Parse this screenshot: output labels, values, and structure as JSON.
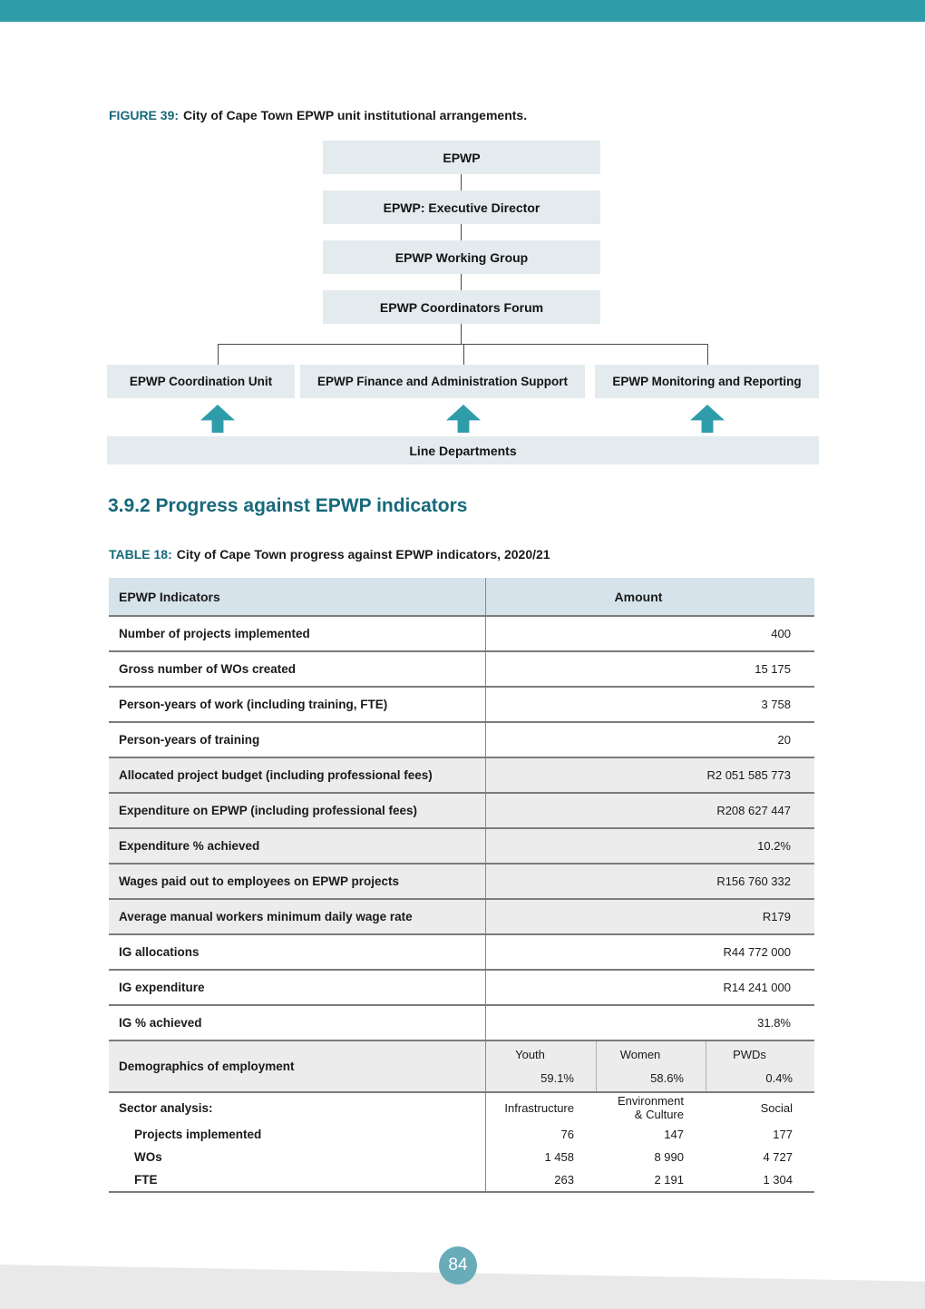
{
  "page": {
    "number": "84"
  },
  "colors": {
    "accent_teal": "#2F9DA9",
    "heading_teal": "#16697A",
    "badge_teal": "#69ACB9",
    "org_box_bg": "#E3EBEE",
    "table_header_bg": "#D7E3EA",
    "table_shade_bg": "#ECECEC"
  },
  "figure": {
    "label": "FIGURE 39:",
    "caption": "City of Cape Town EPWP unit institutional arrangements.",
    "chain": [
      "EPWP",
      "EPWP: Executive Director",
      "EPWP Working Group",
      "EPWP Coordinators Forum"
    ],
    "branches": [
      "EPWP Coordination Unit",
      "EPWP Finance and Administration Support",
      "EPWP Monitoring and Reporting"
    ],
    "base": "Line Departments"
  },
  "section": {
    "heading": "3.9.2 Progress against EPWP indicators"
  },
  "table": {
    "label": "TABLE 18:",
    "caption": "City of Cape Town progress against EPWP indicators, 2020/21",
    "columns": {
      "indicators": "EPWP Indicators",
      "amount": "Amount"
    },
    "rows": [
      {
        "label": "Number of projects implemented",
        "value": "400"
      },
      {
        "label": "Gross number of WOs created",
        "value": "15 175"
      },
      {
        "label": "Person-years of work (including training, FTE)",
        "value": "3 758"
      },
      {
        "label": "Person-years of training",
        "value": "20"
      },
      {
        "label": "Allocated project budget (including professional fees)",
        "value": "R2 051 585 773"
      },
      {
        "label": "Expenditure on EPWP (including professional fees)",
        "value": "R208 627 447"
      },
      {
        "label": "Expenditure % achieved",
        "value": "10.2%"
      },
      {
        "label": "Wages paid out to employees on EPWP projects",
        "value": "R156 760 332"
      },
      {
        "label": "Average manual workers minimum daily wage rate",
        "value": "R179"
      },
      {
        "label": "IG allocations",
        "value": "R44 772 000"
      },
      {
        "label": "IG expenditure",
        "value": "R14 241 000"
      },
      {
        "label": "IG % achieved",
        "value": "31.8%"
      }
    ],
    "demographics": {
      "label": "Demographics of employment",
      "headers": [
        "Youth",
        "Women",
        "PWDs"
      ],
      "values": [
        "59.1%",
        "58.6%",
        "0.4%"
      ]
    },
    "sector": {
      "label": "Sector analysis:",
      "headers": [
        "Infrastructure",
        "Environment\n& Culture",
        "Social"
      ],
      "rows": [
        {
          "label": "Projects implemented",
          "values": [
            "76",
            "147",
            "177"
          ]
        },
        {
          "label": "WOs",
          "values": [
            "1 458",
            "8 990",
            "4 727"
          ]
        },
        {
          "label": "FTE",
          "values": [
            "263",
            "2 191",
            "1 304"
          ]
        }
      ]
    }
  }
}
